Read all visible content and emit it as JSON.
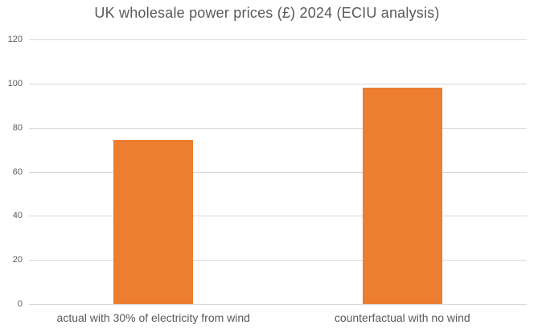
{
  "chart_data": {
    "type": "bar",
    "title": "UK wholesale power prices (£) 2024 (ECIU analysis)",
    "categories": [
      "actual with 30% of electricity from wind",
      "counterfactual with no wind"
    ],
    "values": [
      74.5,
      98
    ],
    "xlabel": "",
    "ylabel": "",
    "ylim": [
      0,
      120
    ],
    "yticks": [
      0,
      20,
      40,
      60,
      80,
      100,
      120
    ],
    "grid": "horizontal",
    "legend": "none",
    "colors": {
      "bar": "#ED7D31",
      "gridline": "#D9D9D9",
      "text": "#595959",
      "background": "#FFFFFF"
    }
  }
}
